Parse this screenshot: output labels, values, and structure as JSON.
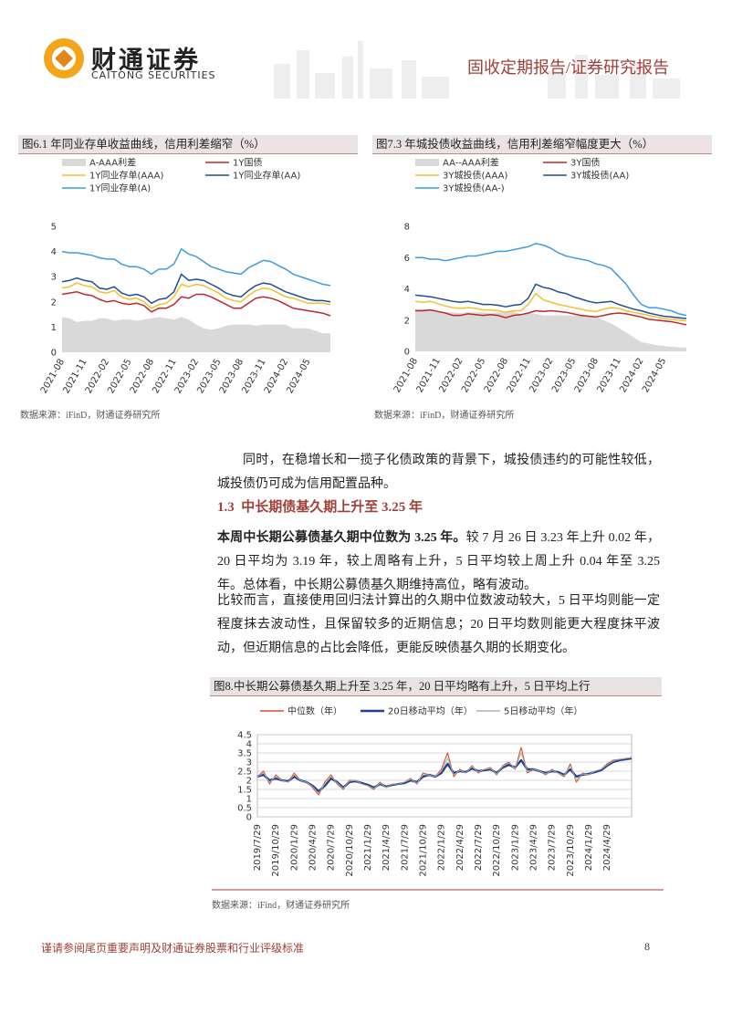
{
  "header": {
    "brand_cn": "财通证券",
    "brand_en": "CAITONG SECURITIES",
    "report_type": "固收定期报告/证券研究报告"
  },
  "chart_data": [
    {
      "type": "line",
      "title": "图6.1 年同业存单收益曲线，信用利差缩窄（%）",
      "source": "数据来源：iFinD，财通证券研究所",
      "categories": [
        "2021-08",
        null,
        null,
        "2021-11",
        null,
        null,
        "2022-02",
        null,
        null,
        "2022-05",
        null,
        null,
        "2022-08",
        null,
        null,
        "2022-11",
        null,
        null,
        "2023-02",
        null,
        null,
        "2023-05",
        null,
        null,
        "2023-08",
        null,
        null,
        "2023-11",
        null,
        null,
        "2024-02",
        null,
        null,
        "2024-05",
        null,
        null,
        null
      ],
      "series": [
        {
          "name": "A-AAA利差",
          "type": "area",
          "color": "#d9d9d9",
          "values": [
            1.4,
            1.35,
            1.2,
            1.25,
            1.25,
            1.35,
            1.35,
            1.25,
            1.3,
            1.3,
            1.25,
            1.3,
            1.35,
            1.4,
            1.35,
            1.3,
            1.4,
            1.3,
            1.1,
            0.95,
            0.9,
            0.95,
            1.05,
            1.1,
            1.1,
            1.1,
            1.05,
            1.1,
            1.1,
            1.1,
            1.1,
            0.95,
            0.95,
            0.95,
            0.85,
            0.75,
            0.75
          ]
        },
        {
          "name": "1Y国债",
          "color": "#c0282d",
          "values": [
            2.3,
            2.35,
            2.4,
            2.3,
            2.25,
            2.1,
            2.0,
            2.05,
            1.95,
            1.9,
            1.95,
            1.85,
            1.6,
            1.75,
            1.75,
            1.9,
            2.2,
            2.15,
            2.3,
            2.3,
            2.2,
            2.05,
            1.9,
            1.75,
            1.75,
            1.95,
            2.15,
            2.2,
            2.15,
            2.05,
            1.9,
            1.75,
            1.7,
            1.65,
            1.6,
            1.55,
            1.45
          ]
        },
        {
          "name": "1Y同业存单(AAA)",
          "color": "#f2c12e",
          "values": [
            2.55,
            2.6,
            2.75,
            2.65,
            2.6,
            2.4,
            2.35,
            2.45,
            2.2,
            2.1,
            2.15,
            2.0,
            1.75,
            1.9,
            1.95,
            2.2,
            2.7,
            2.6,
            2.7,
            2.65,
            2.5,
            2.35,
            2.15,
            2.05,
            2.0,
            2.25,
            2.45,
            2.55,
            2.5,
            2.35,
            2.2,
            2.15,
            2.05,
            1.95,
            1.95,
            1.95,
            1.9
          ]
        },
        {
          "name": "1Y同业存单(AA)",
          "color": "#1f4e96",
          "values": [
            2.8,
            2.85,
            2.95,
            2.85,
            2.8,
            2.55,
            2.5,
            2.6,
            2.35,
            2.25,
            2.3,
            2.2,
            1.95,
            2.1,
            2.15,
            2.4,
            3.1,
            2.85,
            2.9,
            2.85,
            2.7,
            2.55,
            2.35,
            2.25,
            2.2,
            2.45,
            2.65,
            2.75,
            2.7,
            2.55,
            2.4,
            2.3,
            2.2,
            2.1,
            2.05,
            2.05,
            2.0
          ]
        },
        {
          "name": "1Y同业存单(A)",
          "color": "#3d9be0",
          "values": [
            4.0,
            3.95,
            3.95,
            3.9,
            3.85,
            3.75,
            3.7,
            3.7,
            3.5,
            3.4,
            3.4,
            3.3,
            3.1,
            3.3,
            3.3,
            3.5,
            4.1,
            3.9,
            3.8,
            3.6,
            3.4,
            3.3,
            3.2,
            3.15,
            3.1,
            3.35,
            3.5,
            3.65,
            3.6,
            3.45,
            3.3,
            3.1,
            3.0,
            2.9,
            2.8,
            2.7,
            2.65
          ]
        }
      ],
      "ylim": [
        0,
        5
      ],
      "yticks": [
        0,
        1,
        2,
        3,
        4,
        5
      ],
      "grid": false,
      "legend": "top"
    },
    {
      "type": "line",
      "title": "图7.3 年城投债收益曲线，信用利差缩窄幅度更大（%）",
      "source": "数据来源：iFinD，财通证券研究所",
      "categories": [
        "2021-08",
        null,
        null,
        "2021-11",
        null,
        null,
        "2022-02",
        null,
        null,
        "2022-05",
        null,
        null,
        "2022-08",
        null,
        null,
        "2022-11",
        null,
        null,
        "2023-02",
        null,
        null,
        "2023-05",
        null,
        null,
        "2023-08",
        null,
        null,
        "2023-11",
        null,
        null,
        "2024-02",
        null,
        null,
        "2024-05",
        null,
        null,
        null
      ],
      "series": [
        {
          "name": "AA--AAA利差",
          "type": "area",
          "color": "#d9d9d9",
          "values": [
            2.7,
            2.7,
            2.7,
            2.6,
            2.5,
            2.5,
            2.45,
            2.5,
            2.5,
            2.5,
            2.45,
            2.5,
            2.5,
            2.55,
            2.4,
            2.45,
            2.4,
            2.3,
            2.3,
            2.3,
            2.3,
            2.3,
            2.35,
            2.3,
            2.2,
            2.0,
            1.8,
            1.5,
            1.2,
            0.9,
            0.6,
            0.5,
            0.4,
            0.35,
            0.3,
            0.25,
            0.25
          ]
        },
        {
          "name": "3Y国债",
          "color": "#c0282d",
          "values": [
            2.6,
            2.6,
            2.65,
            2.55,
            2.45,
            2.3,
            2.3,
            2.4,
            2.35,
            2.3,
            2.35,
            2.3,
            2.15,
            2.3,
            2.35,
            2.45,
            2.6,
            2.55,
            2.6,
            2.55,
            2.5,
            2.4,
            2.3,
            2.25,
            2.2,
            2.3,
            2.4,
            2.45,
            2.4,
            2.3,
            2.2,
            2.05,
            2.0,
            1.95,
            1.9,
            1.8,
            1.7
          ]
        },
        {
          "name": "3Y城投债(AAA)",
          "color": "#f2c12e",
          "values": [
            3.2,
            3.15,
            3.2,
            3.05,
            2.9,
            2.8,
            2.75,
            2.8,
            2.75,
            2.65,
            2.65,
            2.6,
            2.5,
            2.6,
            2.6,
            3.0,
            3.7,
            3.3,
            3.15,
            3.0,
            2.9,
            2.8,
            2.7,
            2.6,
            2.55,
            2.7,
            2.8,
            2.75,
            2.6,
            2.5,
            2.4,
            2.3,
            2.2,
            2.1,
            2.05,
            2.0,
            1.95
          ]
        },
        {
          "name": "3Y城投债(AA)",
          "color": "#1f4e96",
          "values": [
            3.6,
            3.55,
            3.5,
            3.4,
            3.3,
            3.2,
            3.15,
            3.2,
            3.1,
            3.0,
            3.0,
            2.95,
            2.85,
            2.95,
            3.0,
            3.4,
            4.3,
            4.1,
            4.0,
            3.8,
            3.7,
            3.5,
            3.35,
            3.2,
            3.1,
            3.15,
            3.2,
            3.0,
            2.85,
            2.7,
            2.6,
            2.45,
            2.35,
            2.25,
            2.2,
            2.15,
            2.1
          ]
        },
        {
          "name": "3Y城投债(AA-)",
          "color": "#3d9be0",
          "values": [
            6.0,
            6.0,
            5.9,
            5.9,
            5.8,
            5.9,
            6.0,
            6.1,
            6.1,
            6.2,
            6.3,
            6.4,
            6.4,
            6.5,
            6.6,
            6.7,
            6.9,
            6.8,
            6.6,
            6.3,
            6.1,
            6.0,
            5.9,
            5.8,
            5.6,
            5.5,
            5.3,
            4.8,
            4.3,
            3.6,
            3.0,
            2.8,
            2.8,
            2.7,
            2.6,
            2.4,
            2.3
          ]
        }
      ],
      "ylim": [
        0,
        8
      ],
      "yticks": [
        0,
        2,
        4,
        6,
        8
      ],
      "grid": false,
      "legend": "top"
    },
    {
      "type": "line",
      "title": "图8.中长期公募债基久期上升至 3.25 年，20 日平均略有上升，5 日平均上行",
      "source": "数据来源：iFind，财通证券研究所",
      "categories": [
        "2019/7/29",
        null,
        null,
        "2019/10/29",
        null,
        null,
        "2020/1/29",
        null,
        null,
        "2020/4/29",
        null,
        null,
        "2020/7/29",
        null,
        null,
        "2020/10/29",
        null,
        null,
        "2021/1/29",
        null,
        null,
        "2021/4/29",
        null,
        null,
        "2021/7/29",
        null,
        null,
        "2021/10/29",
        null,
        null,
        "2022/1/29",
        null,
        null,
        "2022/4/29",
        null,
        null,
        "2022/7/29",
        null,
        null,
        "2022/10/29",
        null,
        null,
        "2023/1/29",
        null,
        null,
        "2023/4/29",
        null,
        null,
        "2023/7/29",
        null,
        null,
        "2023/10/29",
        null,
        null,
        "2024/1/29",
        null,
        null,
        "2024/4/29",
        null,
        null,
        null,
        null
      ],
      "series": [
        {
          "name": "中位数（年）",
          "color": "#d0532b",
          "values": [
            2.2,
            2.5,
            1.8,
            2.3,
            2.0,
            1.9,
            2.4,
            2.0,
            1.9,
            1.6,
            1.2,
            1.9,
            2.3,
            1.8,
            1.5,
            2.0,
            2.0,
            1.8,
            1.7,
            1.5,
            1.9,
            1.6,
            1.8,
            1.8,
            1.9,
            2.1,
            1.8,
            2.4,
            2.3,
            2.2,
            2.6,
            3.5,
            2.2,
            2.6,
            2.4,
            2.8,
            2.4,
            2.6,
            2.7,
            2.3,
            2.8,
            3.0,
            2.6,
            3.8,
            2.4,
            2.6,
            2.5,
            2.3,
            2.6,
            2.4,
            2.2,
            2.9,
            1.9,
            2.4,
            2.3,
            2.5,
            2.6,
            2.9,
            3.1,
            3.15,
            3.2,
            3.25
          ]
        },
        {
          "name": "20日移动平均（年）",
          "color": "#1f3f8f",
          "values": [
            2.2,
            2.3,
            2.0,
            2.1,
            2.0,
            1.95,
            2.2,
            2.0,
            1.9,
            1.7,
            1.4,
            1.7,
            2.1,
            1.9,
            1.6,
            1.9,
            1.95,
            1.85,
            1.75,
            1.6,
            1.8,
            1.65,
            1.75,
            1.8,
            1.85,
            2.0,
            1.9,
            2.2,
            2.3,
            2.2,
            2.4,
            2.9,
            2.4,
            2.5,
            2.45,
            2.65,
            2.5,
            2.55,
            2.6,
            2.4,
            2.7,
            2.85,
            2.7,
            3.1,
            2.6,
            2.6,
            2.5,
            2.4,
            2.5,
            2.45,
            2.3,
            2.6,
            2.2,
            2.3,
            2.35,
            2.45,
            2.55,
            2.8,
            3.0,
            3.1,
            3.15,
            3.2
          ]
        },
        {
          "name": "5日移动平均（年）",
          "color": "#b0b0b0",
          "values": [
            2.2,
            2.4,
            1.9,
            2.2,
            2.0,
            1.9,
            2.3,
            2.0,
            1.9,
            1.65,
            1.3,
            1.8,
            2.2,
            1.85,
            1.55,
            1.95,
            2.0,
            1.8,
            1.7,
            1.55,
            1.85,
            1.6,
            1.8,
            1.8,
            1.9,
            2.05,
            1.85,
            2.3,
            2.3,
            2.2,
            2.5,
            3.2,
            2.3,
            2.55,
            2.4,
            2.75,
            2.45,
            2.6,
            2.65,
            2.35,
            2.75,
            2.95,
            2.65,
            3.5,
            2.5,
            2.6,
            2.5,
            2.35,
            2.55,
            2.4,
            2.25,
            2.8,
            2.0,
            2.35,
            2.3,
            2.5,
            2.6,
            2.85,
            3.05,
            3.15,
            3.2,
            3.25
          ]
        }
      ],
      "ylim": [
        0,
        4.5
      ],
      "yticks": [
        0,
        0.5,
        1,
        1.5,
        2,
        2.5,
        3,
        3.5,
        4,
        4.5
      ],
      "grid": true,
      "legend": "top"
    }
  ],
  "body": {
    "para1": "同时，在稳增长和一揽子化债政策的背景下，城投债违约的可能性较低，城投债仍可成为信用配置品种。",
    "heading": {
      "number": "1.3",
      "text": "中长期债基久期上升至 3.25 年"
    },
    "para2": {
      "bold": "本周中长期公募债基久期中位数为 3.25 年。",
      "text": "较 7 月 26 日 3.23 年上升 0.02 年，20 日平均为 3.19 年，较上周略有上升，5 日平均较上周上升 0.04 年至 3.25 年。总体看，中长期公募债基久期维持高位，略有波动。"
    },
    "para3": "比较而言，直接使用回归法计算出的久期中位数波动较大，5 日平均则能一定程度抹去波动性，且保留较多的近期信息；20 日平均数则能更大程度抹平波动，但近期信息的占比会降低，更能反映债基久期的长期变化。"
  },
  "footer": {
    "disclaimer": "谨请参阅尾页重要声明及财通证券股票和行业评级标准",
    "page": 8
  }
}
